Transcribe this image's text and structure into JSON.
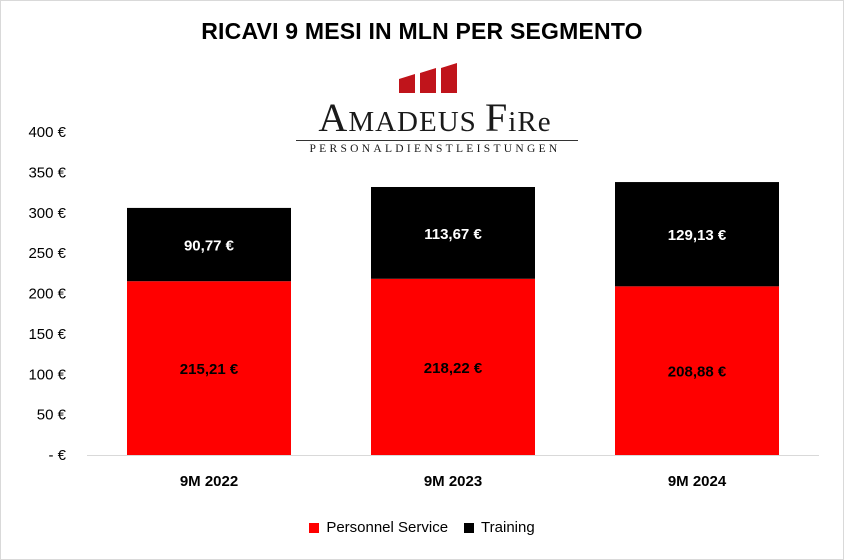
{
  "chart_data": {
    "type": "bar",
    "stacked": true,
    "title": "RICAVI 9 MESI IN MLN PER SEGMENTO",
    "categories": [
      "9M 2022",
      "9M 2023",
      "9M 2024"
    ],
    "series": [
      {
        "name": "Personnel Service",
        "color": "#ff0000",
        "values": [
          215.21,
          218.22,
          208.88
        ],
        "labels": [
          "215,21 €",
          "218,22 €",
          "208,88 €"
        ]
      },
      {
        "name": "Training",
        "color": "#000000",
        "values": [
          90.77,
          113.67,
          129.13
        ],
        "labels": [
          "90,77 €",
          "113,67 €",
          "129,13 €"
        ]
      }
    ],
    "ylim": [
      0,
      400
    ],
    "yticks": [
      0,
      50,
      100,
      150,
      200,
      250,
      300,
      350,
      400
    ],
    "ytick_labels": [
      "- €",
      "50 €",
      "100 €",
      "150 €",
      "200 €",
      "250 €",
      "300 €",
      "350 €",
      "400 €"
    ],
    "grid": false,
    "legend": "bottom"
  },
  "logo": {
    "name_first_initial": "A",
    "name_first_rest": "MADEUS",
    "name_second_initial": "F",
    "name_second_rest": "iR",
    "name_second_end": "e",
    "subtitle": "PERSONALDIENSTLEISTUNGEN",
    "color": "#c0141b"
  }
}
